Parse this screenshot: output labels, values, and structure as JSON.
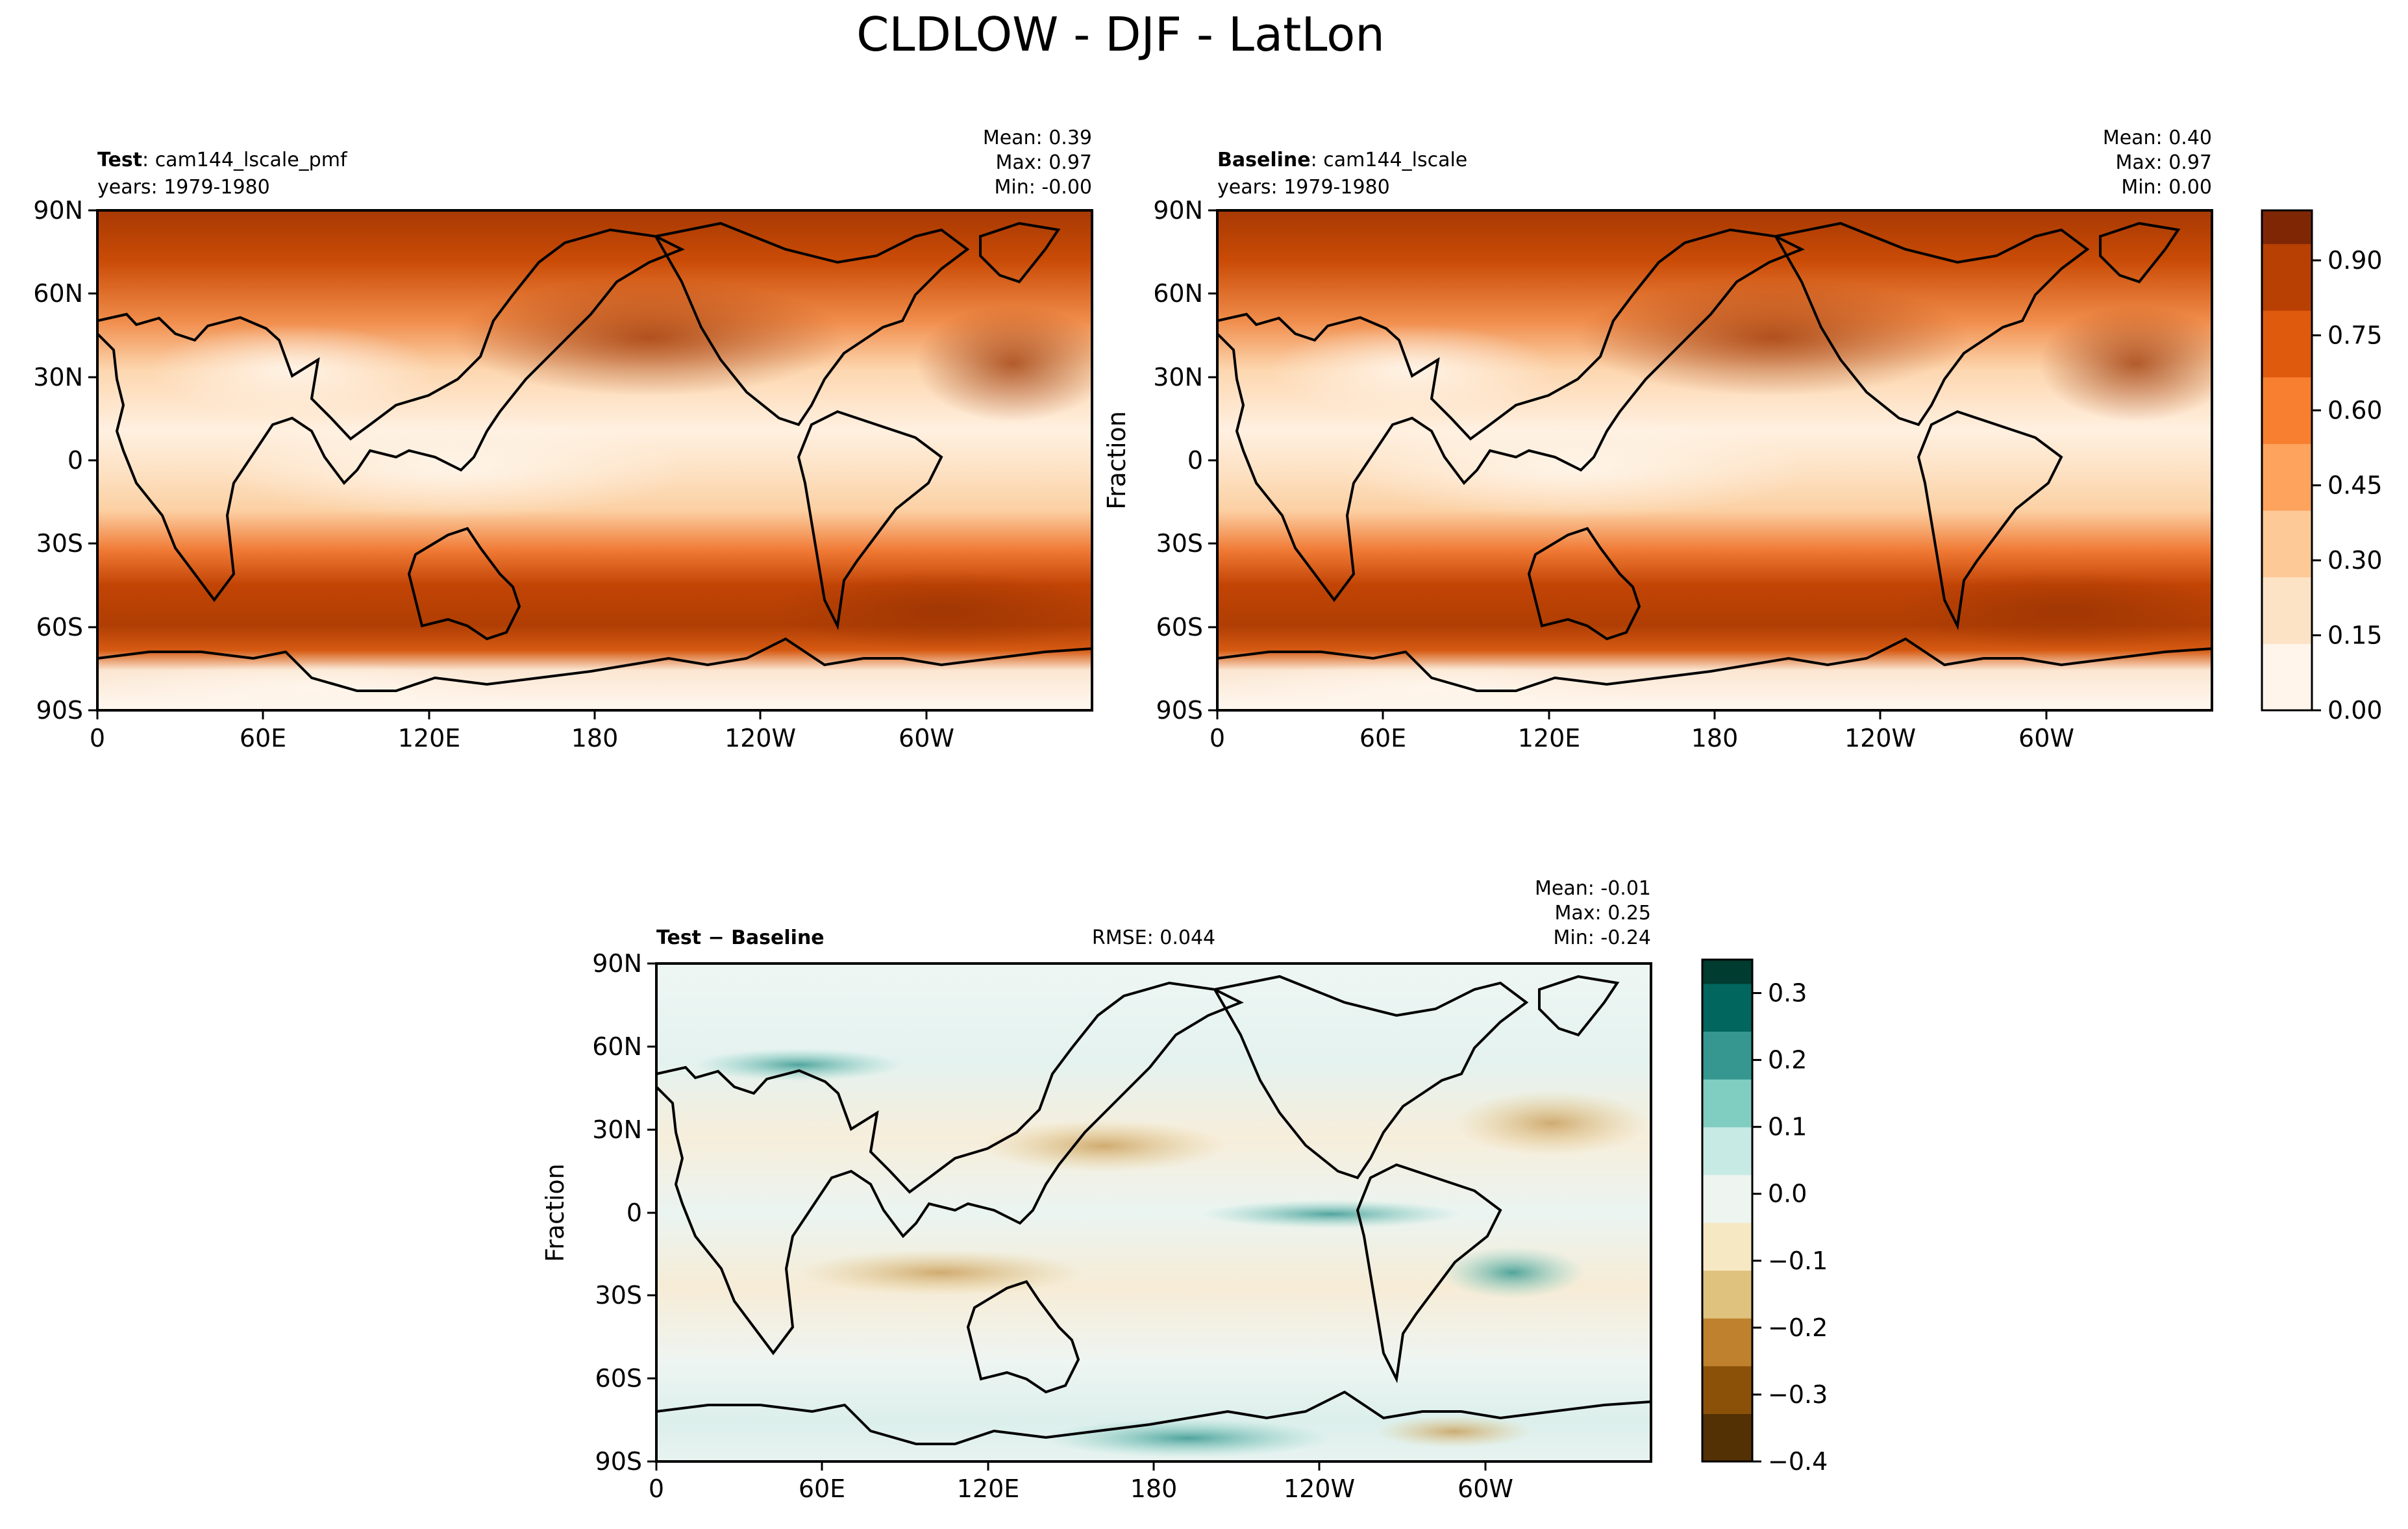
{
  "figure": {
    "title": "CLDLOW - DJF - LatLon"
  },
  "chart_data": [
    {
      "type": "heatmap",
      "panel": "test",
      "label_bold": "Test",
      "label_sep": ": ",
      "label_case": "cam144_lscale_pmf",
      "years": "years: 1979-1980",
      "stats": {
        "mean": "Mean:  0.39",
        "max": "Max:  0.97",
        "min": "Min: -0.00"
      },
      "ylabel": "",
      "x_ticks": [
        "0",
        "60E",
        "120E",
        "180",
        "120W",
        "60W"
      ],
      "y_ticks": [
        "90N",
        "60N",
        "30N",
        "0",
        "30S",
        "60S",
        "90S"
      ],
      "xlim": [
        0,
        360
      ],
      "ylim": [
        -90,
        90
      ]
    },
    {
      "type": "heatmap",
      "panel": "baseline",
      "label_bold": "Baseline",
      "label_sep": ": ",
      "label_case": "cam144_lscale",
      "years": "years: 1979-1980",
      "stats": {
        "mean": "Mean:  0.40",
        "max": "Max:  0.97",
        "min": "Min:  0.00"
      },
      "ylabel": "Fraction",
      "x_ticks": [
        "0",
        "60E",
        "120E",
        "180",
        "120W",
        "60W"
      ],
      "y_ticks": [
        "90N",
        "60N",
        "30N",
        "0",
        "30S",
        "60S",
        "90S"
      ],
      "xlim": [
        0,
        360
      ],
      "ylim": [
        -90,
        90
      ],
      "colorbar": {
        "ticks": [
          "0.00",
          "0.15",
          "0.30",
          "0.45",
          "0.60",
          "0.75",
          "0.90"
        ],
        "range": [
          0.0,
          1.0
        ],
        "colormap": "Oranges",
        "colors": [
          "#fff5eb",
          "#fde3c6",
          "#fdc997",
          "#fda35e",
          "#f77f2f",
          "#e05a0e",
          "#b84003",
          "#7f2704"
        ]
      }
    },
    {
      "type": "heatmap",
      "panel": "difference",
      "label_bold": "Test",
      "label_sep": " − ",
      "label_case": "Baseline",
      "rmse": "RMSE: 0.044",
      "stats": {
        "mean": "Mean: -0.01",
        "max": "Max:  0.25",
        "min": "Min: -0.24"
      },
      "ylabel": "Fraction",
      "x_ticks": [
        "0",
        "60E",
        "120E",
        "180",
        "120W",
        "60W"
      ],
      "y_ticks": [
        "90N",
        "60N",
        "30N",
        "0",
        "30S",
        "60S",
        "90S"
      ],
      "xlim": [
        0,
        360
      ],
      "ylim": [
        -90,
        90
      ],
      "colorbar": {
        "ticks": [
          "0.3",
          "0.2",
          "0.1",
          "0.0",
          "−0.1",
          "−0.2",
          "−0.3",
          "−0.4"
        ],
        "range": [
          -0.4,
          0.35
        ],
        "colormap": "BrBG",
        "colors": [
          "#543005",
          "#8c5109",
          "#bf812d",
          "#dfc27d",
          "#f6e8c3",
          "#eef4ef",
          "#c7eae5",
          "#80cdc1",
          "#35978f",
          "#01665e",
          "#003c30"
        ]
      }
    }
  ]
}
